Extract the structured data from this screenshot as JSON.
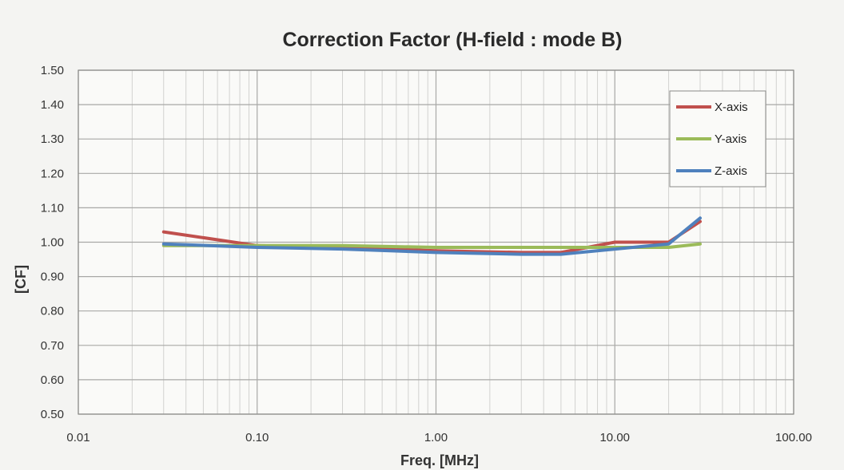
{
  "chart_data": {
    "type": "line",
    "title": "Correction Factor (H-field : mode B)",
    "xlabel": "Freq.  [MHz]",
    "ylabel": "[CF]",
    "x_scale": "log",
    "xlim": [
      0.01,
      100
    ],
    "ylim": [
      0.5,
      1.5
    ],
    "x_ticks": [
      0.01,
      0.1,
      1,
      10,
      100
    ],
    "x_tick_labels": [
      "0.01",
      "0.10",
      "1.00",
      "10.00",
      "100.00"
    ],
    "y_ticks": [
      0.5,
      0.6,
      0.7,
      0.8,
      0.9,
      1.0,
      1.1,
      1.2,
      1.3,
      1.4,
      1.5
    ],
    "y_tick_labels": [
      "0.50",
      "0.60",
      "0.70",
      "0.80",
      "0.90",
      "1.00",
      "1.10",
      "1.20",
      "1.30",
      "1.40",
      "1.50"
    ],
    "grid": "major and minor (log decades)",
    "legend": "top-right",
    "series": [
      {
        "name": "X-axis",
        "color": "#c0504d",
        "x": [
          0.03,
          0.1,
          0.3,
          1,
          3,
          5,
          10,
          20,
          30
        ],
        "y": [
          1.03,
          0.99,
          0.985,
          0.975,
          0.97,
          0.97,
          1.0,
          1.0,
          1.06
        ]
      },
      {
        "name": "Y-axis",
        "color": "#9bbb59",
        "x": [
          0.03,
          0.1,
          0.3,
          1,
          3,
          5,
          10,
          20,
          30
        ],
        "y": [
          0.99,
          0.99,
          0.99,
          0.985,
          0.985,
          0.985,
          0.985,
          0.985,
          0.995
        ]
      },
      {
        "name": "Z-axis",
        "color": "#4f81bd",
        "x": [
          0.03,
          0.1,
          0.3,
          1,
          3,
          5,
          10,
          20,
          30
        ],
        "y": [
          0.995,
          0.985,
          0.98,
          0.97,
          0.965,
          0.965,
          0.98,
          0.995,
          1.07
        ]
      }
    ]
  }
}
